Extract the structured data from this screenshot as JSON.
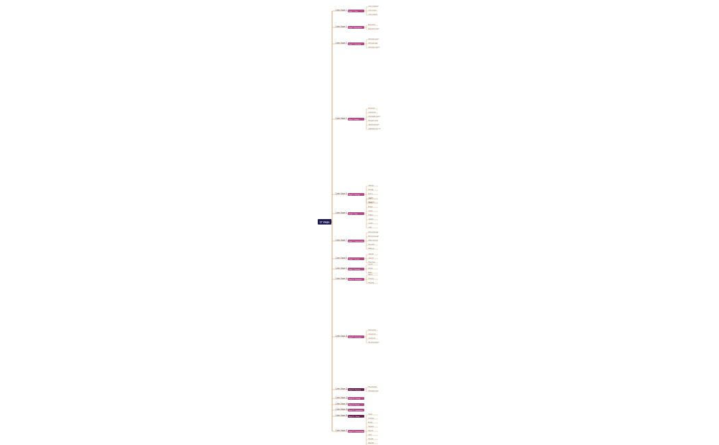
{
  "root": {
    "label": "17 steps"
  },
  "stages": [
    {
      "label": "Crisis Stage 1",
      "node": "Stage 1 – Crisis",
      "children": [
        "Crisis component",
        "Crisis context",
        "Crisis response"
      ]
    },
    {
      "label": "Crisis Stage 2",
      "node": "Stage 2 – Assessment",
      "children": [
        "Assessment",
        "Assessment scope"
      ]
    },
    {
      "label": "Crisis Stage 3",
      "node": "Stage 3 – Information",
      "children": [
        "Information source",
        "Information type",
        "Information channel"
      ]
    },
    {
      "label": "Crisis Stage 4",
      "node": "Stage 4 – Analysis",
      "children": [
        "Key factors",
        "Critical items",
        "Stakeholder analysis",
        "Resource review",
        "Operational factors",
        "Deployment structure"
      ]
    },
    {
      "label": "Crisis Stage 5",
      "node": "Stage 5 – Planning",
      "children": [
        "Objective",
        "Strategy",
        "Actions",
        "Timeline",
        "Resources"
      ]
    },
    {
      "label": "Crisis Stage 6",
      "node": "Stage 6 – Team",
      "children": [
        "Lead",
        "Deputy",
        "Analyst",
        "Liaison",
        "Support",
        "Logistics",
        "Comms",
        "Legal"
      ]
    },
    {
      "label": "Crisis Stage 7",
      "node": "Stage 7 – Communication",
      "children": [
        "Internal message",
        "External message",
        "Media statement",
        "Key points",
        "Follow-up"
      ]
    },
    {
      "label": "Crisis Stage 8",
      "node": "Stage 8 – Decision",
      "children": [
        "Option A",
        "Option B",
        "Final choice"
      ]
    },
    {
      "label": "Crisis Stage 9",
      "node": "Stage 9 – Execution",
      "children": [
        "Launch",
        "Monitor",
        "Adjust"
      ]
    },
    {
      "label": "Crisis Stage 10",
      "node": "Stage 10 – Monitoring",
      "children": [
        "Metrics",
        "Indicators",
        "Reporting"
      ]
    },
    {
      "label": "Crisis Stage 11",
      "node": "Stage 11 – Evaluation",
      "children": [
        "Review items",
        "Outcome list",
        "Lessons list",
        "Recommendations"
      ]
    },
    {
      "label": "Crisis Stage 12",
      "node": "Stage 12 – Recovery",
      "children": [
        "Recovery plan",
        "Restoration steps"
      ]
    },
    {
      "label": "Crisis Stage 13",
      "node": "Stage 13 – Learning",
      "children": []
    },
    {
      "label": "Crisis Stage 14",
      "node": "Stage 14 – Review",
      "children": []
    },
    {
      "label": "Crisis Stage 15",
      "node": "Stage 15 – Improvement",
      "children": []
    },
    {
      "label": "Crisis Stage 16",
      "node": "Stage 16 – Closure",
      "children": []
    },
    {
      "label": "Crisis Stage 17",
      "node": "Stage 17 – Documentation",
      "children": [
        "Report",
        "Summary",
        "Archive",
        "Handover",
        "Sign-off",
        "Notes",
        "Records",
        "Appendix",
        "Index"
      ]
    }
  ],
  "colors": {
    "root": "#1f1a4d",
    "stage_node": "#b24a86",
    "stage_node_dark": "#6b1d4e",
    "branch_line": "#c98a3a",
    "trunk_line": "#c27a2c",
    "stage_text": "#3a2a4a",
    "leaf_text": "#5a4a3a"
  }
}
